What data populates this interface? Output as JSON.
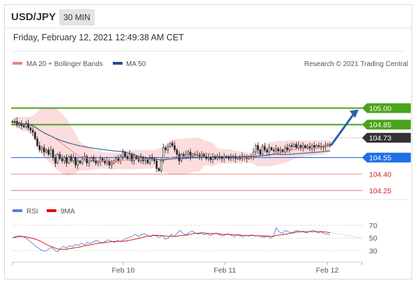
{
  "header": {
    "symbol": "USD/JPY",
    "timeframe": "30 MIN",
    "datetime": "Friday, February 12, 2021 12:49:38 AM CET"
  },
  "legend": {
    "ma20_label": "MA 20 + Bollinger Bands",
    "ma50_label": "MA 50",
    "credit": "Research © 2021 Trading Central",
    "rsi_label": "RSI",
    "ma9_label": "9MA"
  },
  "colors": {
    "candle": "#222222",
    "ma20": "#f08080",
    "bollinger_fill": "#fbd6d6",
    "ma50": "#1f4e8c",
    "green_level": "#4aa31b",
    "blue_level": "#1f6fe6",
    "red_level": "#e06060",
    "current": "#333333",
    "rsi": "#5a7fd6",
    "rsi_ma9": "#e00000",
    "arrow": "#2c5ea8"
  },
  "chart_data": [
    {
      "type": "candlestick",
      "title": "",
      "x_ticks": [
        "Feb 10",
        "Feb 11",
        "Feb 12"
      ],
      "ylim": [
        104.18,
        105.32
      ],
      "candles_close": [
        104.87,
        104.88,
        104.85,
        104.86,
        104.84,
        104.83,
        104.86,
        104.82,
        104.8,
        104.78,
        104.72,
        104.66,
        104.62,
        104.64,
        104.6,
        104.62,
        104.58,
        104.62,
        104.55,
        104.5,
        104.58,
        104.54,
        104.52,
        104.55,
        104.5,
        104.56,
        104.52,
        104.55,
        104.48,
        104.52,
        104.5,
        104.54,
        104.56,
        104.5,
        104.52,
        104.55,
        104.52,
        104.5,
        104.51,
        104.54,
        104.52,
        104.5,
        104.52,
        104.48,
        104.5,
        104.52,
        104.54,
        104.52,
        104.56,
        104.6,
        104.56,
        104.54,
        104.58,
        104.52,
        104.56,
        104.54,
        104.52,
        104.55,
        104.52,
        104.53,
        104.5,
        104.55,
        104.54,
        104.52,
        104.45,
        104.43,
        104.52,
        104.64,
        104.62,
        104.65,
        104.68,
        104.66,
        104.62,
        104.58,
        104.52,
        104.58,
        104.56,
        104.58,
        104.6,
        104.56,
        104.58,
        104.57,
        104.58,
        104.56,
        104.58,
        104.56,
        104.54,
        104.55,
        104.53,
        104.56,
        104.54,
        104.56,
        104.55,
        104.54,
        104.56,
        104.55,
        104.54,
        104.55,
        104.56,
        104.54,
        104.55,
        104.54,
        104.56,
        104.55,
        104.54,
        104.56,
        104.55,
        104.6,
        104.66,
        104.62,
        104.58,
        104.65,
        104.62,
        104.6,
        104.64,
        104.62,
        104.61,
        104.63,
        104.61,
        104.62,
        104.6,
        104.64,
        104.62,
        104.66,
        104.65,
        104.67,
        104.64,
        104.66,
        104.64,
        104.66,
        104.64,
        104.65,
        104.63,
        104.66,
        104.64,
        104.66,
        104.65,
        104.64,
        104.65,
        104.66,
        104.67,
        104.66
      ],
      "levels": [
        {
          "value": 105.0,
          "label": "105.00",
          "kind": "resistance",
          "style": "green-solid"
        },
        {
          "value": 104.85,
          "label": "104.85",
          "kind": "resistance",
          "style": "green-solid"
        },
        {
          "value": 104.73,
          "label": "104.73",
          "kind": "current",
          "style": "dotted"
        },
        {
          "value": 104.55,
          "label": "104.55",
          "kind": "pivot",
          "style": "blue-solid"
        },
        {
          "value": 104.4,
          "label": "104.40",
          "kind": "support",
          "style": "red-thin"
        },
        {
          "value": 104.25,
          "label": "104.25",
          "kind": "support",
          "style": "red-thin"
        }
      ],
      "series": [
        {
          "name": "MA 20 + Bollinger Bands"
        },
        {
          "name": "MA 50"
        }
      ]
    },
    {
      "type": "line",
      "title": "",
      "ylim": [
        15,
        80
      ],
      "y_ticks": [
        30,
        50,
        70
      ],
      "values": [
        50,
        52,
        54,
        53,
        51,
        48,
        44,
        40,
        36,
        33,
        30,
        29,
        32,
        35,
        31,
        28,
        33,
        37,
        34,
        38,
        36,
        40,
        38,
        42,
        39,
        43,
        41,
        44,
        46,
        44,
        42,
        45,
        47,
        45,
        43,
        46,
        44,
        47,
        49,
        51,
        53,
        56,
        52,
        55,
        57,
        54,
        52,
        55,
        53,
        51,
        54,
        48,
        50,
        56,
        52,
        58,
        62,
        57,
        55,
        59,
        61,
        58,
        56,
        58,
        55,
        57,
        54,
        56,
        58,
        55,
        53,
        55,
        57,
        54,
        52,
        55,
        53,
        52,
        54,
        53,
        55,
        53,
        54,
        52,
        51,
        53,
        50,
        52,
        66,
        60,
        57,
        62,
        60,
        58,
        60,
        62,
        59,
        61,
        58,
        60,
        62,
        61,
        58,
        60,
        57,
        56,
        55
      ],
      "series": [
        {
          "name": "RSI"
        },
        {
          "name": "9MA"
        }
      ]
    }
  ]
}
